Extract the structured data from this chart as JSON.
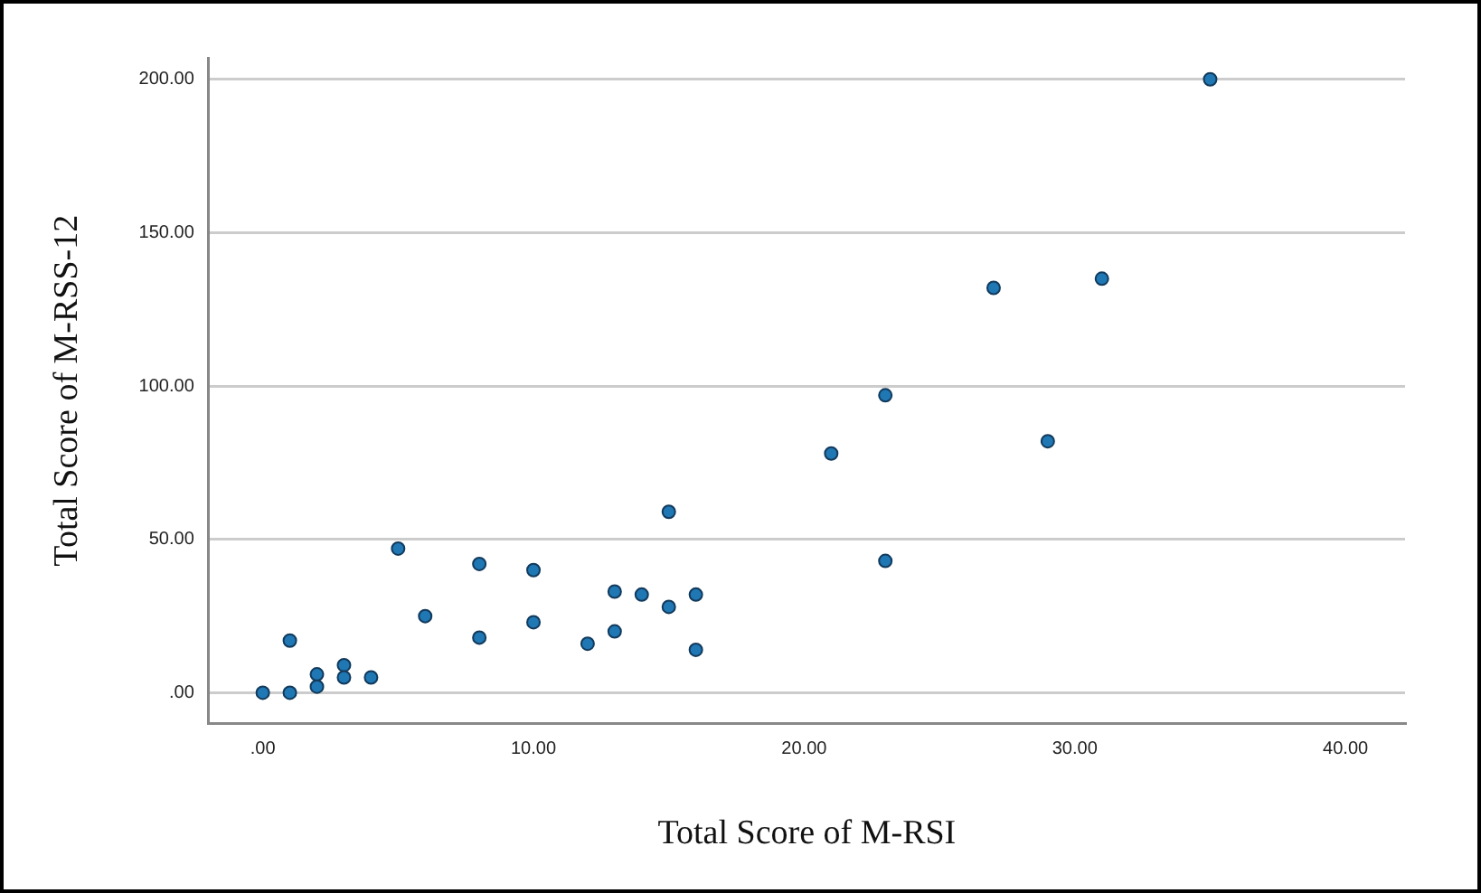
{
  "chart_data": {
    "type": "scatter",
    "xlabel": "Total Score of M-RSI",
    "ylabel": "Total Score of M-RSS-12",
    "x": [
      0,
      1,
      1,
      2,
      2,
      3,
      3,
      4,
      5,
      6,
      8,
      8,
      10,
      10,
      12,
      13,
      13,
      14,
      15,
      15,
      16,
      16,
      21,
      23,
      23,
      27,
      29,
      31,
      35
    ],
    "series": [
      {
        "color": "#1f77b4",
        "values": [
          0,
          0,
          17,
          6,
          2,
          9,
          5,
          5,
          47,
          25,
          42,
          18,
          40,
          23,
          16,
          33,
          20,
          32,
          59,
          28,
          32,
          14,
          78,
          97,
          43,
          132,
          82,
          135,
          200
        ]
      }
    ],
    "xlim": [
      -2,
      42.2
    ],
    "ylim": [
      -10,
      207
    ],
    "xticks": [
      {
        "value": 0,
        "label": ".00"
      },
      {
        "value": 10,
        "label": "10.00"
      },
      {
        "value": 20,
        "label": "20.00"
      },
      {
        "value": 30,
        "label": "30.00"
      },
      {
        "value": 40,
        "label": "40.00"
      }
    ],
    "yticks": [
      {
        "value": 0,
        "label": ".00"
      },
      {
        "value": 50,
        "label": "50.00"
      },
      {
        "value": 100,
        "label": "100.00"
      },
      {
        "value": 150,
        "label": "150.00"
      },
      {
        "value": 200,
        "label": "200.00"
      }
    ],
    "grid": "y",
    "marker": "circle",
    "legend": false
  }
}
